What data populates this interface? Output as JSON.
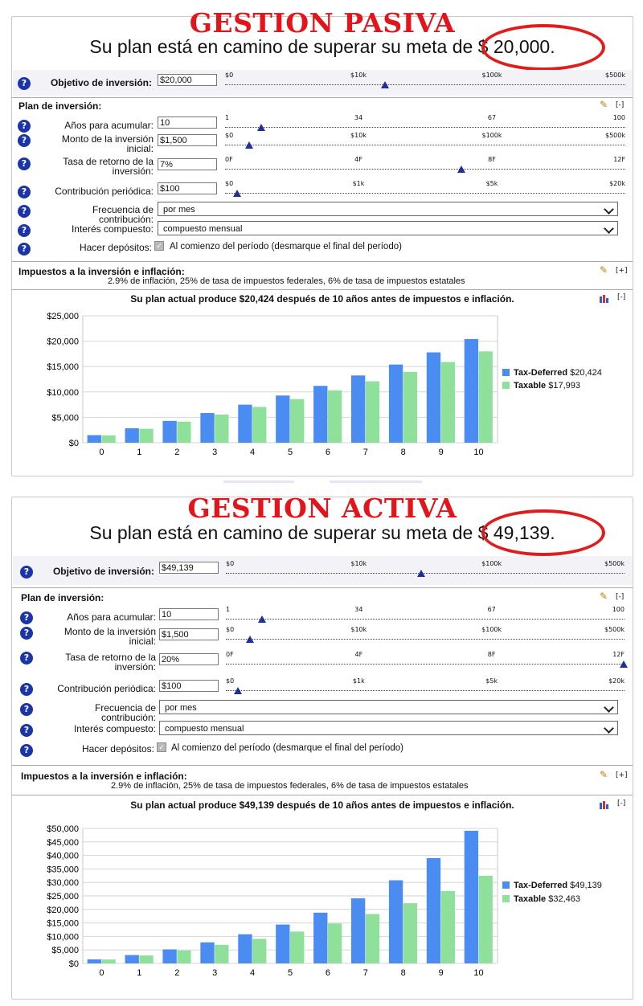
{
  "colors": {
    "title_red": "#e3141a",
    "oval_red": "#e01c1c",
    "tax_deferred": "#4a8cf2",
    "taxable": "#8fe09a",
    "help_icon": "#1b35a8"
  },
  "icons": {
    "help": "question-circle-icon",
    "edit": "pencil-icon",
    "chart_toggle": "bar-chart-icon"
  },
  "panels": [
    {
      "heading": "GESTION PASIVA",
      "headline": "Su plan está en camino de superar su meta de $ 20,000.",
      "objective": {
        "label": "Objetivo de inversión:",
        "value": "$20,000",
        "ticks": [
          "$0",
          "$10k",
          "$100k",
          "$500k"
        ],
        "level": 0.4
      },
      "plan": {
        "title": "Plan de inversión:",
        "toggle": "[-]",
        "years": {
          "label": "Años para acumular:",
          "value": "10",
          "ticks": [
            "1",
            "34",
            "67",
            "100"
          ],
          "level": 0.09
        },
        "initial": {
          "label": "Monto de la inversión inicial:",
          "value": "$1,500",
          "ticks": [
            "$0",
            "$10k",
            "$100k",
            "$500k"
          ],
          "level": 0.06
        },
        "rate": {
          "label": "Tasa de retorno de la inversión:",
          "value": "7%",
          "ticks": [
            "0F",
            "4F",
            "8F",
            "12F"
          ],
          "level": 0.59
        },
        "contribution": {
          "label": "Contribución periódica:",
          "value": "$100",
          "ticks": [
            "$0",
            "$1k",
            "$5k",
            "$20k"
          ],
          "level": 0.03
        },
        "frequency": {
          "label": "Frecuencia de contribución:",
          "value": "por mes"
        },
        "compound": {
          "label": "Interés compuesto:",
          "value": "compuesto mensual"
        },
        "deposits": {
          "label": "Hacer depósitos:",
          "text": "Al comienzo del período (desmarque el final del período)"
        }
      },
      "taxes": {
        "title": "Impuestos a la inversión e inflación:",
        "toggle": "[+]",
        "summary": "2.9% de inflación, 25% de tasa de impuestos federales, 6% de tasa de impuestos estatales"
      },
      "chart": {
        "title": "Su plan actual produce $20,424 después de 10 años antes de impuestos e inflación.",
        "toggle": "[-]",
        "legend": [
          {
            "name": "Tax-Deferred",
            "value": "$20,424"
          },
          {
            "name": "Taxable",
            "value": "$17,993"
          }
        ]
      }
    },
    {
      "heading": "GESTION ACTIVA",
      "headline": "Su plan está en camino de superar su meta de $ 49,139.",
      "objective": {
        "label": "Objetivo de inversión:",
        "value": "$49,139",
        "ticks": [
          "$0",
          "$10k",
          "$100k",
          "$500k"
        ],
        "level": 0.49
      },
      "plan": {
        "title": "Plan de inversión:",
        "toggle": "[-]",
        "years": {
          "label": "Años para acumular:",
          "value": "10",
          "ticks": [
            "1",
            "34",
            "67",
            "100"
          ],
          "level": 0.09
        },
        "initial": {
          "label": "Monto de la inversión inicial:",
          "value": "$1,500",
          "ticks": [
            "$0",
            "$10k",
            "$100k",
            "$500k"
          ],
          "level": 0.06
        },
        "rate": {
          "label": "Tasa de retorno de la inversión:",
          "value": "20%",
          "ticks": [
            "0F",
            "4F",
            "8F",
            "12F"
          ],
          "level": 1.0
        },
        "contribution": {
          "label": "Contribución periódica:",
          "value": "$100",
          "ticks": [
            "$0",
            "$1k",
            "$5k",
            "$20k"
          ],
          "level": 0.03
        },
        "frequency": {
          "label": "Frecuencia de contribución:",
          "value": "por mes"
        },
        "compound": {
          "label": "Interés compuesto:",
          "value": "compuesto mensual"
        },
        "deposits": {
          "label": "Hacer depósitos:",
          "text": "Al comienzo del período (desmarque el final del período)"
        }
      },
      "taxes": {
        "title": "Impuestos a la inversión e inflación:",
        "toggle": "[+]",
        "summary": "2.9% de inflación, 25% de tasa de impuestos federales, 6% de tasa de impuestos estatales"
      },
      "chart": {
        "title": "Su plan actual produce $49,139 después de 10 años antes de impuestos e inflación.",
        "toggle": "[-]",
        "legend": [
          {
            "name": "Tax-Deferred",
            "value": "$49,139"
          },
          {
            "name": "Taxable",
            "value": "$32,463"
          }
        ]
      }
    }
  ],
  "chart_data": [
    {
      "type": "bar",
      "categories": [
        "0",
        "1",
        "2",
        "3",
        "4",
        "5",
        "6",
        "7",
        "8",
        "9",
        "10"
      ],
      "ylim": [
        0,
        25000
      ],
      "yticks": [
        "$0",
        "$5,000",
        "$10,000",
        "$15,000",
        "$20,000",
        "$25,000"
      ],
      "series": [
        {
          "name": "Tax-Deferred",
          "values": [
            1500,
            2850,
            4300,
            5850,
            7500,
            9300,
            11200,
            13250,
            15400,
            17800,
            20424
          ]
        },
        {
          "name": "Taxable",
          "values": [
            1450,
            2750,
            4150,
            5550,
            7050,
            8600,
            10300,
            12100,
            13950,
            15900,
            17993
          ]
        }
      ]
    },
    {
      "type": "bar",
      "categories": [
        "0",
        "1",
        "2",
        "3",
        "4",
        "5",
        "6",
        "7",
        "8",
        "9",
        "10"
      ],
      "ylim": [
        0,
        50000
      ],
      "yticks": [
        "$0",
        "$5,000",
        "$10,000",
        "$15,000",
        "$20,000",
        "$25,000",
        "$30,000",
        "$35,000",
        "$40,000",
        "$45,000",
        "$50,000"
      ],
      "series": [
        {
          "name": "Tax-Deferred",
          "values": [
            1500,
            3100,
            5200,
            7800,
            10800,
            14400,
            18800,
            24100,
            30800,
            39000,
            49139
          ]
        },
        {
          "name": "Taxable",
          "values": [
            1450,
            2950,
            4800,
            6900,
            9100,
            11800,
            14800,
            18300,
            22300,
            26800,
            32463
          ]
        }
      ]
    }
  ]
}
